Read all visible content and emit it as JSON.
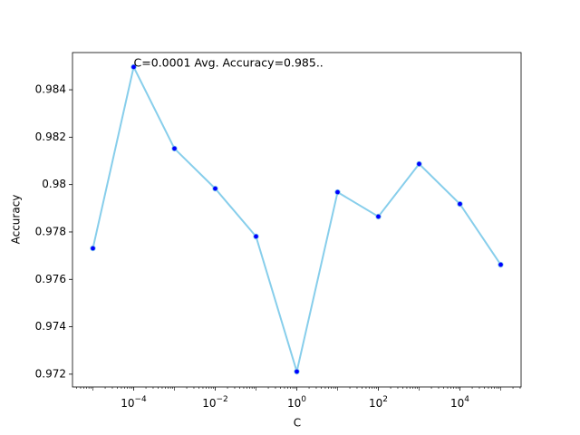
{
  "chart_data": {
    "type": "line",
    "x_label": "C",
    "y_label": "Accuracy",
    "annotation": "C=0.0001 Avg. Accuracy=0.985..",
    "x": [
      1e-05,
      0.0001,
      0.001,
      0.01,
      0.1,
      1,
      10,
      100,
      1000,
      10000,
      100000
    ],
    "series": [
      {
        "color": "#87ceeb",
        "marker_color": "#0000ff",
        "values": [
          0.97731,
          0.98496,
          0.98152,
          0.97983,
          0.97781,
          0.97211,
          0.97968,
          0.97865,
          0.98087,
          0.97918,
          0.97662
        ]
      }
    ],
    "x_log": true,
    "xlim": [
      3.162e-06,
      316200
    ],
    "xticks": [
      {
        "value": 0.0001,
        "label": "10−4"
      },
      {
        "value": 0.01,
        "label": "10−2"
      },
      {
        "value": 1,
        "label": "100"
      },
      {
        "value": 100,
        "label": "102"
      },
      {
        "value": 10000,
        "label": "104"
      }
    ],
    "ylim": [
      0.97146,
      0.98557
    ],
    "yticks": [
      0.972,
      0.974,
      0.976,
      0.978,
      0.98,
      0.982,
      0.984
    ],
    "grid": false
  }
}
